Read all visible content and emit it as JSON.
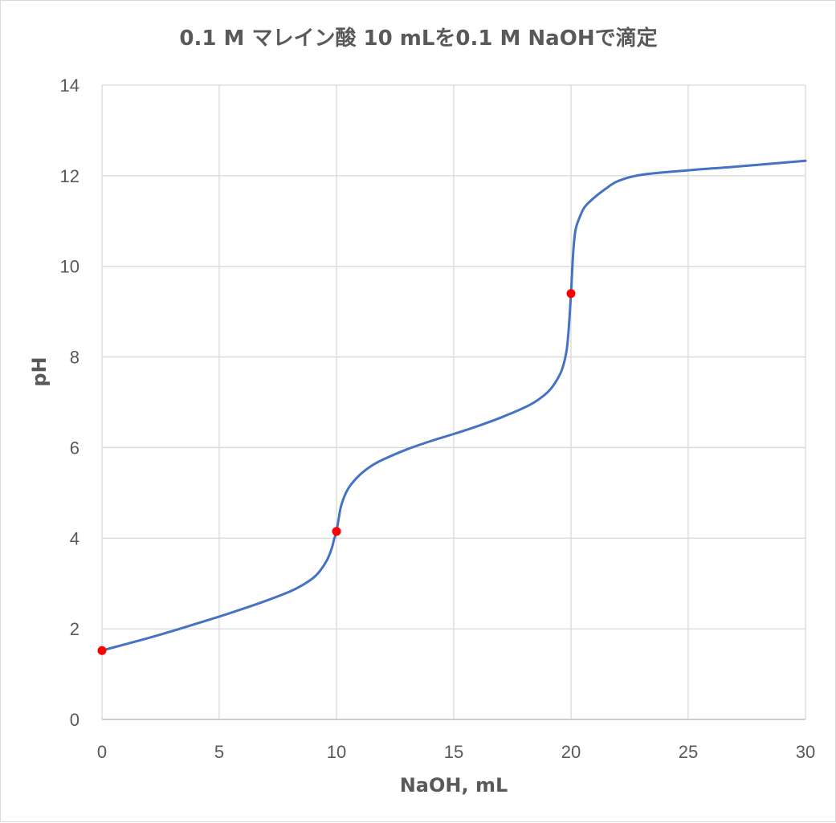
{
  "chart_data": {
    "type": "line",
    "title": "0.1 M マレイン酸 10 mLを0.1 M NaOHで滴定",
    "xlabel": "NaOH, mL",
    "ylabel": "pH",
    "xlim": [
      0,
      30
    ],
    "ylim": [
      0,
      14
    ],
    "x_ticks": [
      "0",
      "5",
      "10",
      "15",
      "20",
      "25",
      "30"
    ],
    "y_ticks": [
      "0",
      "2",
      "4",
      "6",
      "8",
      "10",
      "12",
      "14"
    ],
    "grid": true,
    "legend": "none",
    "colors": {
      "line": "#4472C4",
      "points": "#FF0000",
      "grid": "#D9D9D9",
      "text": "#595959"
    },
    "series": [
      {
        "x": [
          0,
          1,
          2,
          3,
          4,
          5,
          6,
          7,
          8,
          8.5,
          9,
          9.3,
          9.6,
          9.8,
          9.9,
          10,
          10.1,
          10.2,
          10.4,
          10.6,
          11,
          11.5,
          12,
          13,
          14,
          15,
          16,
          17,
          18,
          18.5,
          19,
          19.3,
          19.6,
          19.8,
          19.9,
          20,
          20.1,
          20.2,
          20.4,
          20.6,
          21,
          21.5,
          22,
          23,
          25,
          27,
          30
        ],
        "values": [
          1.52,
          1.66,
          1.8,
          1.95,
          2.11,
          2.27,
          2.44,
          2.62,
          2.82,
          2.95,
          3.12,
          3.28,
          3.52,
          3.78,
          3.98,
          4.15,
          4.45,
          4.72,
          5.0,
          5.17,
          5.4,
          5.6,
          5.74,
          5.96,
          6.14,
          6.3,
          6.47,
          6.66,
          6.88,
          7.02,
          7.22,
          7.41,
          7.7,
          8.1,
          8.6,
          9.4,
          10.35,
          10.82,
          11.12,
          11.32,
          11.52,
          11.72,
          11.88,
          12.02,
          12.12,
          12.2,
          12.33
        ]
      }
    ],
    "marked_points": [
      {
        "x": 0,
        "y": 1.52
      },
      {
        "x": 10,
        "y": 4.15
      },
      {
        "x": 20,
        "y": 9.4
      }
    ]
  }
}
